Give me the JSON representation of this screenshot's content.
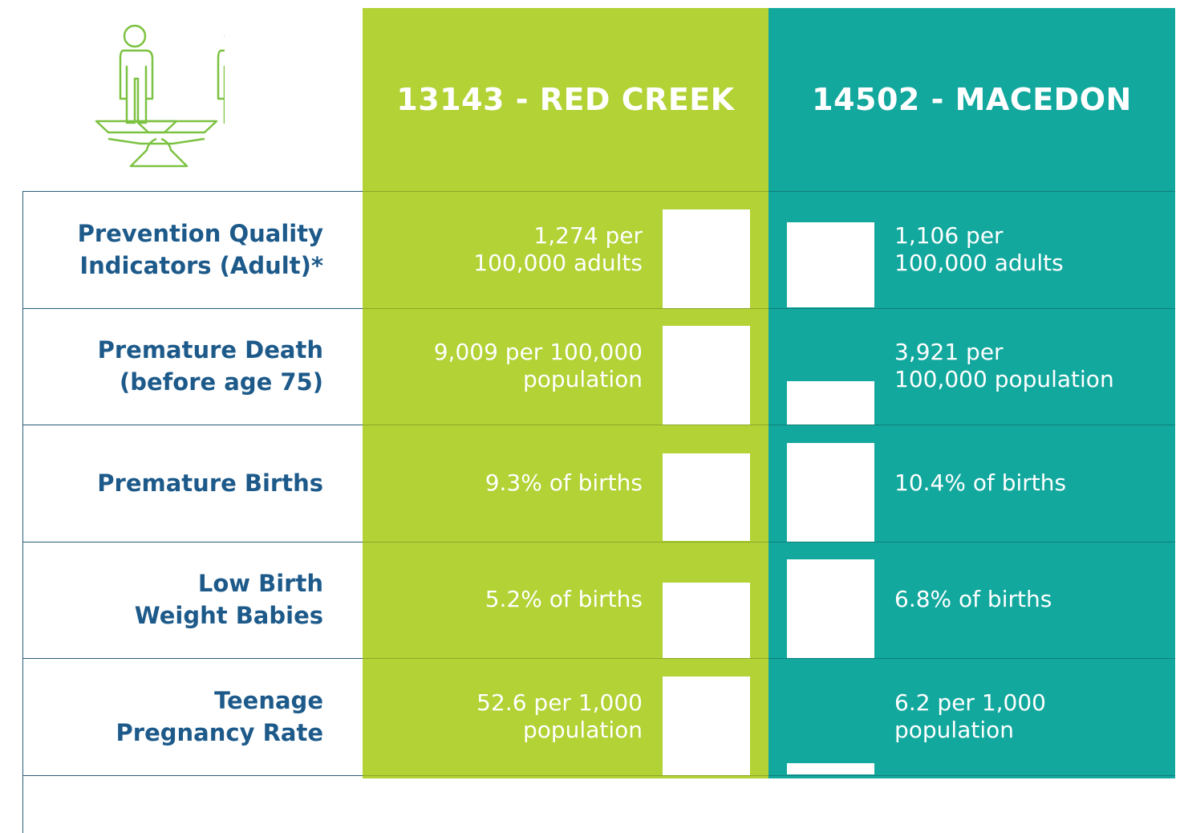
{
  "header": {
    "columns": [
      "13143 - RED CREEK",
      "14502 - MACEDON"
    ]
  },
  "rows": [
    {
      "label": "Prevention Quality\nIndicators (Adult)*",
      "values": [
        1274,
        1106
      ],
      "value_labels": [
        "1,274 per\n100,000 adults",
        "1,106 per\n100,000 adults"
      ]
    },
    {
      "label": "Premature Death\n(before age 75)",
      "values": [
        9009,
        3921
      ],
      "value_labels": [
        "9,009 per 100,000\npopulation",
        "3,921 per\n100,000 population"
      ]
    },
    {
      "label": "Premature Births",
      "values": [
        9.3,
        10.4
      ],
      "value_labels": [
        "9.3% of births",
        "10.4% of births"
      ]
    },
    {
      "label": "Low Birth\nWeight Babies",
      "values": [
        5.2,
        6.8
      ],
      "value_labels": [
        "5.2% of births",
        "6.8% of births"
      ]
    },
    {
      "label": "Teenage\nPregnancy Rate",
      "values": [
        52.6,
        6.2
      ],
      "value_labels": [
        "52.6 per 1,000\npopulation",
        "6.2 per 1,000\npopulation"
      ]
    }
  ]
}
